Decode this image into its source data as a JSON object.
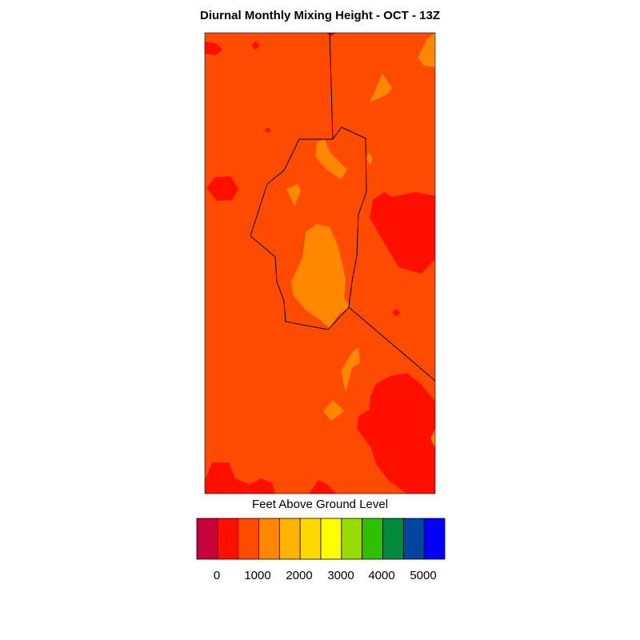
{
  "title": "Diurnal Monthly Mixing Height - OCT - 13Z",
  "legend": {
    "title": "Feet Above Ground Level",
    "colors": [
      "#c8003c",
      "#ff0f00",
      "#ff4b00",
      "#ff8800",
      "#ffb400",
      "#ffd800",
      "#ffff00",
      "#97dc00",
      "#2fc000",
      "#008b3c",
      "#0046a0",
      "#0000ff"
    ],
    "tick_labels": [
      "0",
      "1000",
      "2000",
      "3000",
      "4000",
      "5000"
    ]
  },
  "map_colors": {
    "background": "#ff4b00",
    "low": "#ff0f00",
    "lowest": "#c8003c",
    "mid": "#ff8800",
    "boundary": "#000000"
  }
}
